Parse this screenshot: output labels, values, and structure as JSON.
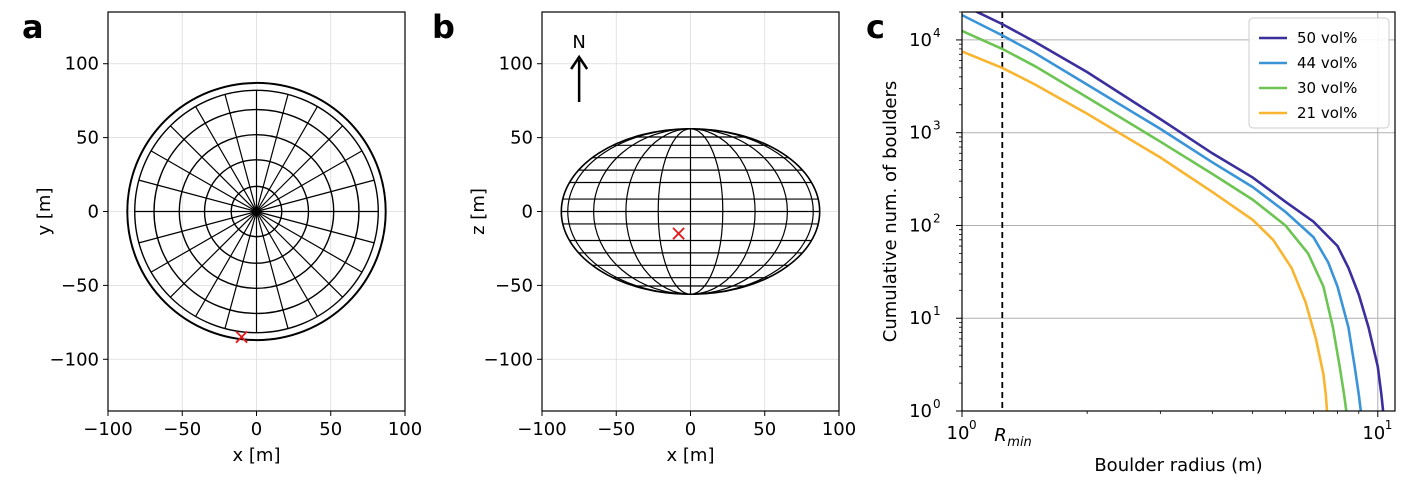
{
  "chart_data": [
    {
      "panel": "a",
      "type": "diagram",
      "xlabel": "x [m]",
      "ylabel": "y [m]",
      "xlim": [
        -100,
        100
      ],
      "ylim": [
        -135,
        135
      ],
      "xticks": [
        -100,
        -50,
        0,
        50,
        100
      ],
      "yticks": [
        -100,
        -50,
        0,
        50,
        100
      ],
      "grid": true,
      "outline_radius": 87,
      "ring_radii": [
        17,
        35,
        52,
        69,
        82
      ],
      "meridian_count": 24,
      "marker": {
        "x": -10,
        "y": -85,
        "symbol": "x",
        "color": "#e41a1c"
      }
    },
    {
      "panel": "b",
      "type": "diagram",
      "xlabel": "x [m]",
      "ylabel": "z [m]",
      "xlim": [
        -100,
        100
      ],
      "ylim": [
        -135,
        135
      ],
      "xticks": [
        -100,
        -50,
        0,
        50,
        100
      ],
      "yticks": [
        -100,
        -50,
        0,
        50,
        100
      ],
      "grid": true,
      "ellipse": {
        "a": 87,
        "b": 56
      },
      "meridian_fractions": [
        0.25,
        0.5,
        0.75,
        0.95
      ],
      "parallel_levels": [
        -0.9,
        -0.8,
        -0.65,
        -0.5,
        -0.35,
        -0.15,
        0,
        0.15,
        0.35,
        0.5,
        0.65,
        0.8,
        0.9
      ],
      "north_label": "N",
      "marker": {
        "x": -8,
        "y": -15,
        "symbol": "x",
        "color": "#e41a1c"
      }
    },
    {
      "panel": "c",
      "type": "line",
      "xlabel": "Boulder radius (m)",
      "ylabel": "Cumulative num. of boulders",
      "xscale": "log",
      "yscale": "log",
      "xlim": [
        1,
        11
      ],
      "ylim": [
        1,
        20000
      ],
      "xticks": [
        1,
        10
      ],
      "yticks": [
        1,
        10,
        100,
        1000,
        10000
      ],
      "grid": "y-major",
      "legend": "top-right",
      "rmin": {
        "value": 1.25,
        "label": "R",
        "sub": "min"
      },
      "series": [
        {
          "name": "50 vol%",
          "color": "#3b2f9e",
          "x": [
            1.0,
            1.25,
            1.5,
            2.0,
            3.0,
            4.0,
            5.0,
            6.0,
            7.0,
            8.0,
            8.5,
            9.0,
            9.5,
            10.0,
            10.2,
            10.3
          ],
          "y": [
            24000,
            14800,
            9500,
            4500,
            1400,
            600,
            330,
            180,
            110,
            60,
            35,
            18,
            8,
            3,
            1.5,
            1
          ]
        },
        {
          "name": "44 vol%",
          "color": "#3a94d8",
          "x": [
            1.0,
            1.25,
            1.5,
            2.0,
            3.0,
            4.0,
            5.0,
            6.0,
            7.0,
            7.6,
            8.0,
            8.5,
            8.8,
            9.0,
            9.1
          ],
          "y": [
            18500,
            11200,
            7200,
            3300,
            1100,
            480,
            260,
            140,
            75,
            40,
            22,
            8,
            3,
            1.5,
            1
          ]
        },
        {
          "name": "30 vol%",
          "color": "#6cc553",
          "x": [
            1.0,
            1.25,
            1.5,
            2.0,
            3.0,
            4.0,
            5.0,
            6.0,
            6.8,
            7.4,
            7.8,
            8.1,
            8.3,
            8.4
          ],
          "y": [
            12500,
            8000,
            5200,
            2400,
            800,
            360,
            190,
            100,
            50,
            22,
            8,
            3,
            1.5,
            1
          ]
        },
        {
          "name": "21 vol%",
          "color": "#f9b430",
          "x": [
            1.0,
            1.25,
            1.5,
            2.0,
            3.0,
            4.0,
            5.0,
            5.6,
            6.2,
            6.7,
            7.1,
            7.4,
            7.5,
            7.55
          ],
          "y": [
            7500,
            5000,
            3300,
            1600,
            540,
            230,
            115,
            70,
            35,
            15,
            6,
            2.5,
            1.5,
            1
          ]
        }
      ]
    }
  ]
}
